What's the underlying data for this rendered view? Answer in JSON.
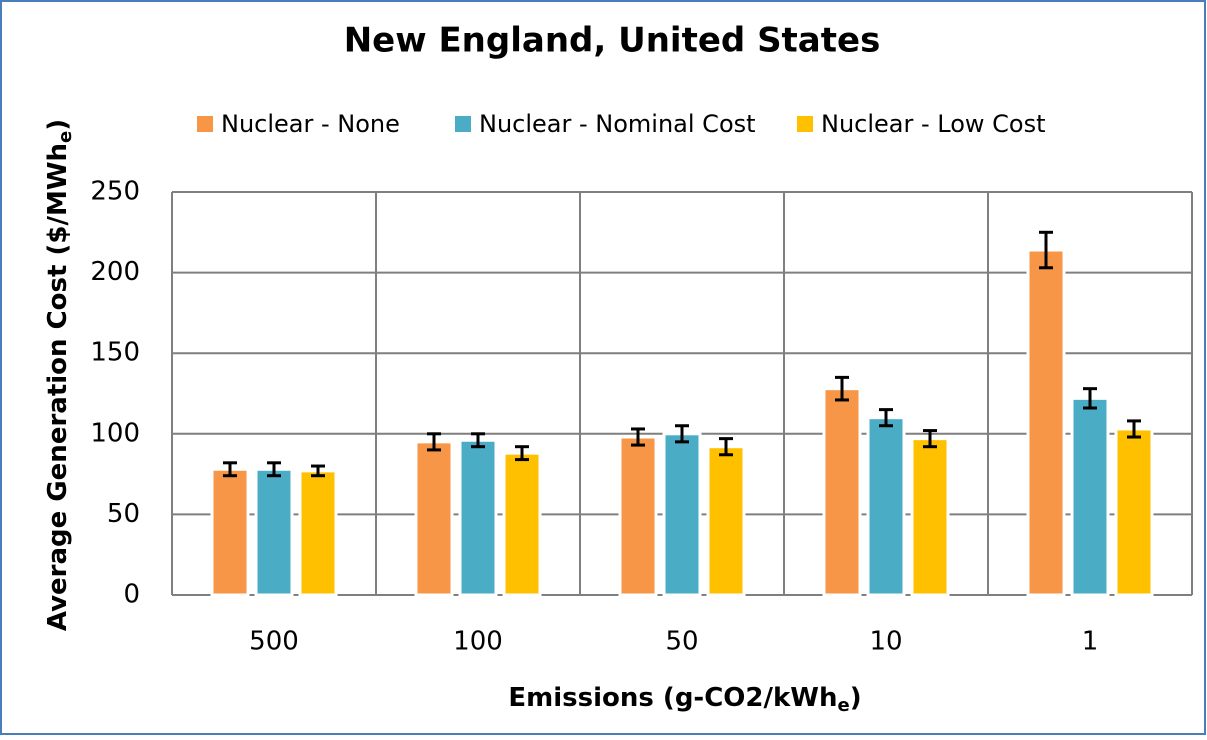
{
  "chart_data": {
    "type": "bar",
    "title": "New England, United States",
    "x_label": [
      "Emissions (g-CO2/kWh",
      "e",
      ")"
    ],
    "y_label": [
      "Average Generation Cost ($/MWh",
      "e",
      ")"
    ],
    "categories": [
      "500",
      "100",
      "50",
      "10",
      "1"
    ],
    "series": [
      {
        "name": "Nuclear - None",
        "color": "#f79646",
        "values": [
          78,
          95,
          98,
          128,
          214
        ],
        "errors": [
          4,
          5,
          5,
          7,
          11
        ]
      },
      {
        "name": "Nuclear - Nominal Cost",
        "color": "#4bacc6",
        "values": [
          78,
          96,
          100,
          110,
          122
        ],
        "errors": [
          4,
          4,
          5,
          5,
          6
        ]
      },
      {
        "name": "Nuclear - Low Cost",
        "color": "#ffc000",
        "values": [
          77,
          88,
          92,
          97,
          103
        ],
        "errors": [
          3,
          4,
          5,
          5,
          5
        ]
      }
    ],
    "ylim": [
      0,
      250
    ],
    "yticks": [
      0,
      50,
      100,
      150,
      200,
      250
    ],
    "grid": true,
    "legend": "top"
  }
}
